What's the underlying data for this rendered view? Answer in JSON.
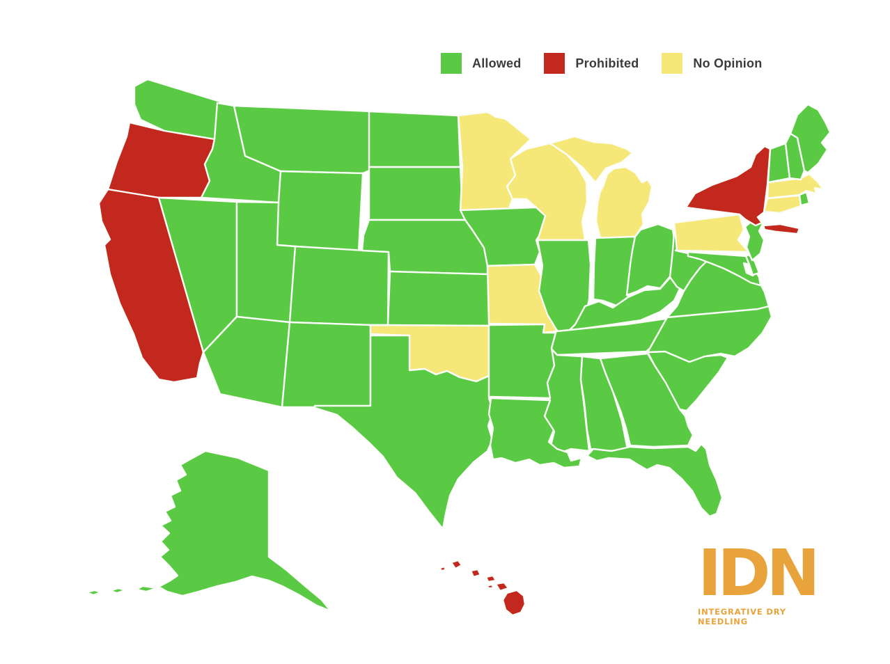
{
  "colors": {
    "allowed": "#5AC944",
    "prohibited": "#C3281E",
    "no_opinion": "#F5E878",
    "border": "#FBFDF8",
    "legend_text": "#3B3B3B",
    "logo": "#E8A33C",
    "background": "#FFFFFF"
  },
  "legend": {
    "items": [
      {
        "key": "allowed",
        "label": "Allowed"
      },
      {
        "key": "prohibited",
        "label": "Prohibited"
      },
      {
        "key": "no_opinion",
        "label": "No Opinion"
      }
    ]
  },
  "logo": {
    "text": "IDN",
    "tagline": "INTEGRATIVE DRY NEEDLING"
  },
  "map": {
    "description": "United States map colored by dry needling legality",
    "states": [
      {
        "id": "WA",
        "name": "Washington",
        "status": "allowed"
      },
      {
        "id": "OR",
        "name": "Oregon",
        "status": "prohibited"
      },
      {
        "id": "CA",
        "name": "California",
        "status": "prohibited"
      },
      {
        "id": "NV",
        "name": "Nevada",
        "status": "allowed"
      },
      {
        "id": "ID",
        "name": "Idaho",
        "status": "allowed"
      },
      {
        "id": "MT",
        "name": "Montana",
        "status": "allowed"
      },
      {
        "id": "WY",
        "name": "Wyoming",
        "status": "allowed"
      },
      {
        "id": "UT",
        "name": "Utah",
        "status": "allowed"
      },
      {
        "id": "CO",
        "name": "Colorado",
        "status": "allowed"
      },
      {
        "id": "AZ",
        "name": "Arizona",
        "status": "allowed"
      },
      {
        "id": "NM",
        "name": "New Mexico",
        "status": "allowed"
      },
      {
        "id": "ND",
        "name": "North Dakota",
        "status": "allowed"
      },
      {
        "id": "SD",
        "name": "South Dakota",
        "status": "allowed"
      },
      {
        "id": "NE",
        "name": "Nebraska",
        "status": "allowed"
      },
      {
        "id": "KS",
        "name": "Kansas",
        "status": "allowed"
      },
      {
        "id": "OK",
        "name": "Oklahoma",
        "status": "no_opinion"
      },
      {
        "id": "TX",
        "name": "Texas",
        "status": "allowed"
      },
      {
        "id": "MN",
        "name": "Minnesota",
        "status": "no_opinion"
      },
      {
        "id": "IA",
        "name": "Iowa",
        "status": "allowed"
      },
      {
        "id": "MO",
        "name": "Missouri",
        "status": "no_opinion"
      },
      {
        "id": "WI",
        "name": "Wisconsin",
        "status": "no_opinion"
      },
      {
        "id": "MI",
        "name": "Michigan",
        "status": "no_opinion"
      },
      {
        "id": "IL",
        "name": "Illinois",
        "status": "allowed"
      },
      {
        "id": "IN",
        "name": "Indiana",
        "status": "allowed"
      },
      {
        "id": "OH",
        "name": "Ohio",
        "status": "allowed"
      },
      {
        "id": "KY",
        "name": "Kentucky",
        "status": "allowed"
      },
      {
        "id": "TN",
        "name": "Tennessee",
        "status": "allowed"
      },
      {
        "id": "MS",
        "name": "Mississippi",
        "status": "allowed"
      },
      {
        "id": "AL",
        "name": "Alabama",
        "status": "allowed"
      },
      {
        "id": "GA",
        "name": "Georgia",
        "status": "allowed"
      },
      {
        "id": "FL",
        "name": "Florida",
        "status": "allowed"
      },
      {
        "id": "SC",
        "name": "South Carolina",
        "status": "allowed"
      },
      {
        "id": "NC",
        "name": "North Carolina",
        "status": "allowed"
      },
      {
        "id": "VA",
        "name": "Virginia",
        "status": "allowed"
      },
      {
        "id": "WV",
        "name": "West Virginia",
        "status": "allowed"
      },
      {
        "id": "MD",
        "name": "Maryland",
        "status": "allowed"
      },
      {
        "id": "DE",
        "name": "Delaware",
        "status": "allowed"
      },
      {
        "id": "NJ",
        "name": "New Jersey",
        "status": "allowed"
      },
      {
        "id": "PA",
        "name": "Pennsylvania",
        "status": "no_opinion"
      },
      {
        "id": "NY",
        "name": "New York",
        "status": "prohibited"
      },
      {
        "id": "CT",
        "name": "Connecticut",
        "status": "no_opinion"
      },
      {
        "id": "RI",
        "name": "Rhode Island",
        "status": "allowed"
      },
      {
        "id": "MA",
        "name": "Massachusetts",
        "status": "no_opinion"
      },
      {
        "id": "VT",
        "name": "Vermont",
        "status": "allowed"
      },
      {
        "id": "NH",
        "name": "New Hampshire",
        "status": "allowed"
      },
      {
        "id": "ME",
        "name": "Maine",
        "status": "allowed"
      },
      {
        "id": "AR",
        "name": "Arkansas",
        "status": "allowed"
      },
      {
        "id": "LA",
        "name": "Louisiana",
        "status": "allowed"
      },
      {
        "id": "AK",
        "name": "Alaska",
        "status": "allowed"
      },
      {
        "id": "HI",
        "name": "Hawaii",
        "status": "prohibited"
      }
    ]
  }
}
